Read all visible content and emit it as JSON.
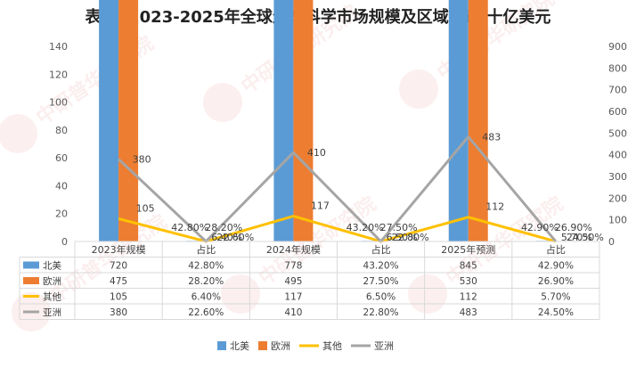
{
  "chart_data": {
    "type": "bar",
    "title": "表1：2023-2025年全球生命科学市场规模及区域分布/十亿美元",
    "categories": [
      "2023年规模",
      "占比",
      "2024年规模",
      "占比",
      "2025年预测",
      "占比"
    ],
    "y_left": {
      "ticks": [
        "0",
        "20",
        "40",
        "60",
        "80",
        "100",
        "120",
        "140"
      ],
      "range": [
        0,
        140
      ]
    },
    "y_right": {
      "ticks": [
        "0",
        "100",
        "200",
        "300",
        "400",
        "500",
        "600",
        "700",
        "800",
        "900"
      ],
      "range": [
        0,
        900
      ]
    },
    "series": [
      {
        "name": "北美",
        "kind": "bar",
        "color": "#5b9bd5",
        "values": [
          720,
          0.428,
          778,
          0.432,
          845,
          0.429
        ],
        "labels": [
          "720",
          "42.80%",
          "778",
          "43.20%",
          "845",
          "42.90%"
        ]
      },
      {
        "name": "欧洲",
        "kind": "bar",
        "color": "#ed7d31",
        "values": [
          475,
          0.282,
          495,
          0.275,
          530,
          0.269
        ],
        "labels": [
          "475",
          "28.20%",
          "495",
          "27.50%",
          "530",
          "26.90%"
        ]
      },
      {
        "name": "其他",
        "kind": "line",
        "color": "#ffc000",
        "values": [
          105,
          0.064,
          117,
          0.065,
          112,
          0.057
        ],
        "labels": [
          "105",
          "6.40%",
          "117",
          "6.50%",
          "112",
          "5.70%"
        ]
      },
      {
        "name": "亚洲",
        "kind": "line",
        "color": "#a5a5a5",
        "values": [
          380,
          0.226,
          410,
          0.228,
          483,
          0.245
        ],
        "labels": [
          "380",
          "22.60%",
          "410",
          "22.80%",
          "483",
          "24.50%"
        ]
      }
    ],
    "legend_position": "bottom",
    "grid": false
  },
  "watermark": {
    "text": "中研普华研究院",
    "sub": "www.chinairn.com",
    "logo": "CIRN"
  }
}
